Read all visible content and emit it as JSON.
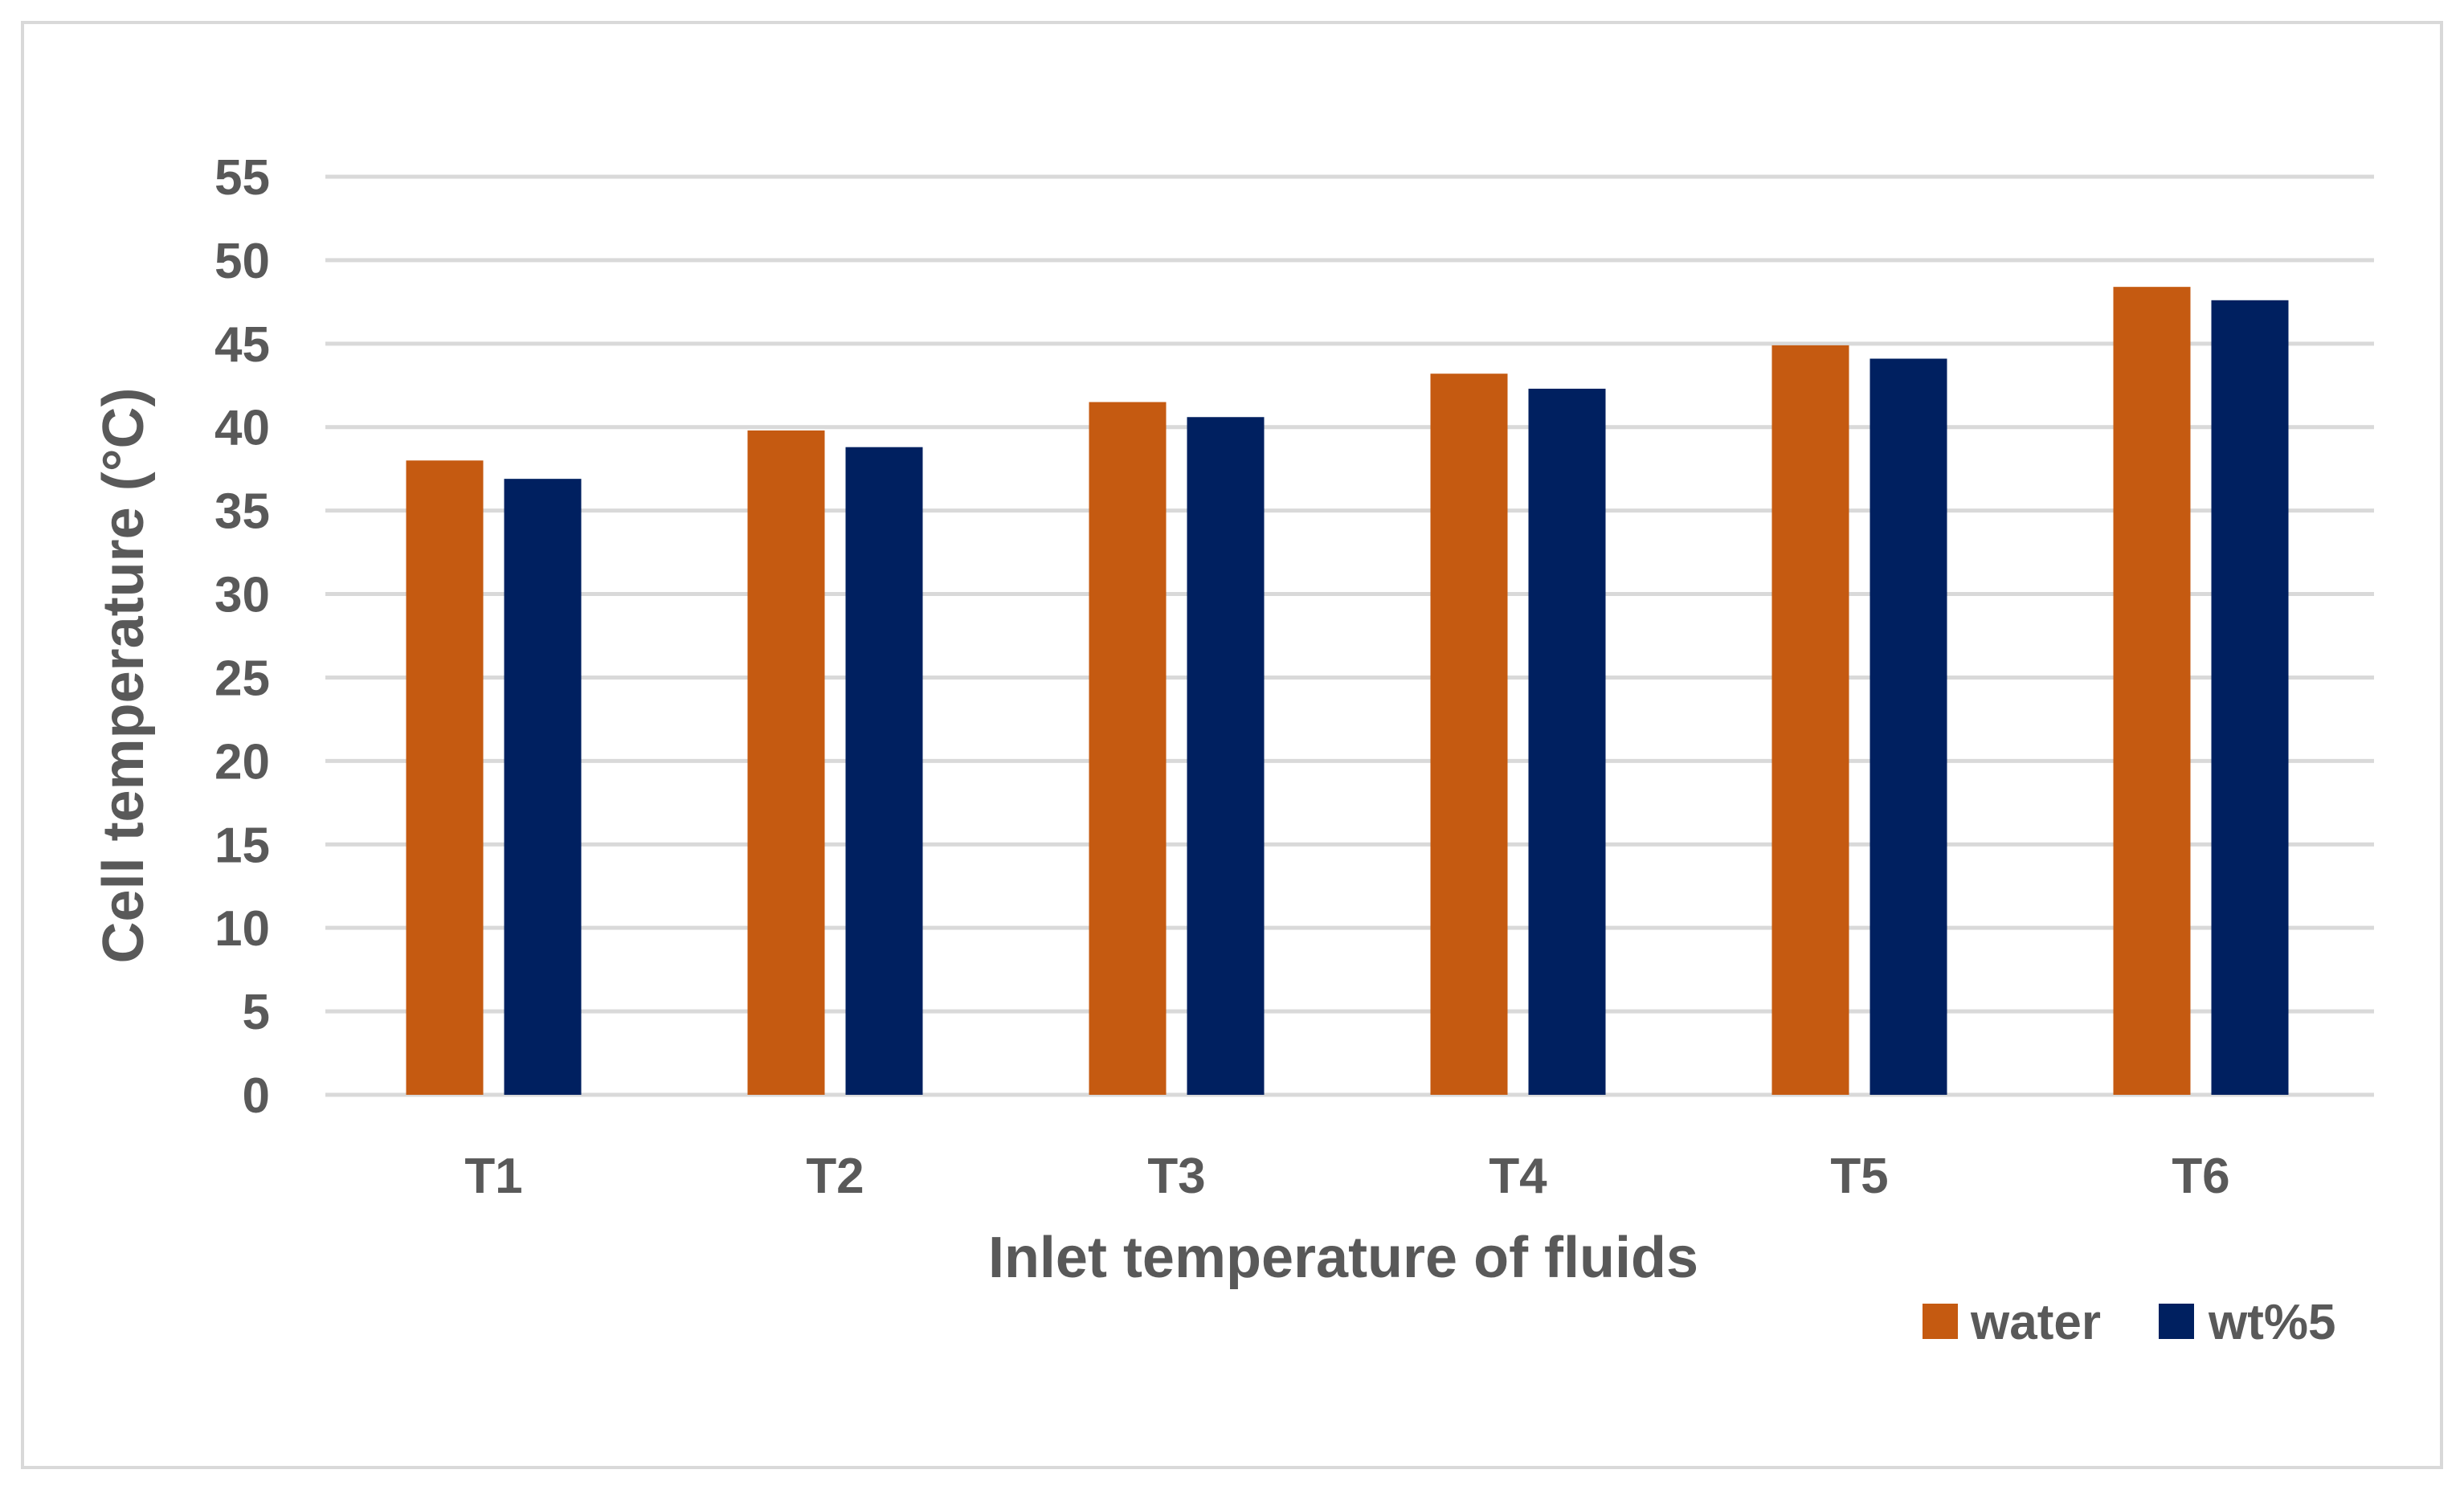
{
  "chart_data": {
    "type": "bar",
    "title": "",
    "xlabel": "Inlet temperature of fluids",
    "ylabel": "Cell temperature (°C)",
    "categories": [
      "T1",
      "T2",
      "T3",
      "T4",
      "T5",
      "T6"
    ],
    "series": [
      {
        "name": "water",
        "color": "#C55A11",
        "values": [
          38.0,
          39.8,
          41.5,
          43.2,
          44.9,
          48.4
        ]
      },
      {
        "name": "wt%5",
        "color": "#002060",
        "values": [
          36.9,
          38.8,
          40.6,
          42.3,
          44.1,
          47.6
        ]
      }
    ],
    "ylim": [
      0,
      55
    ],
    "yticks": [
      "0",
      "5",
      "10",
      "15",
      "20",
      "25",
      "30",
      "35",
      "40",
      "45",
      "50",
      "55"
    ],
    "grid": true,
    "legend": "bottom-right"
  },
  "colors": {
    "gridline": "#D9D9D9",
    "text": "#595959",
    "frame": "#D9D9D9"
  }
}
